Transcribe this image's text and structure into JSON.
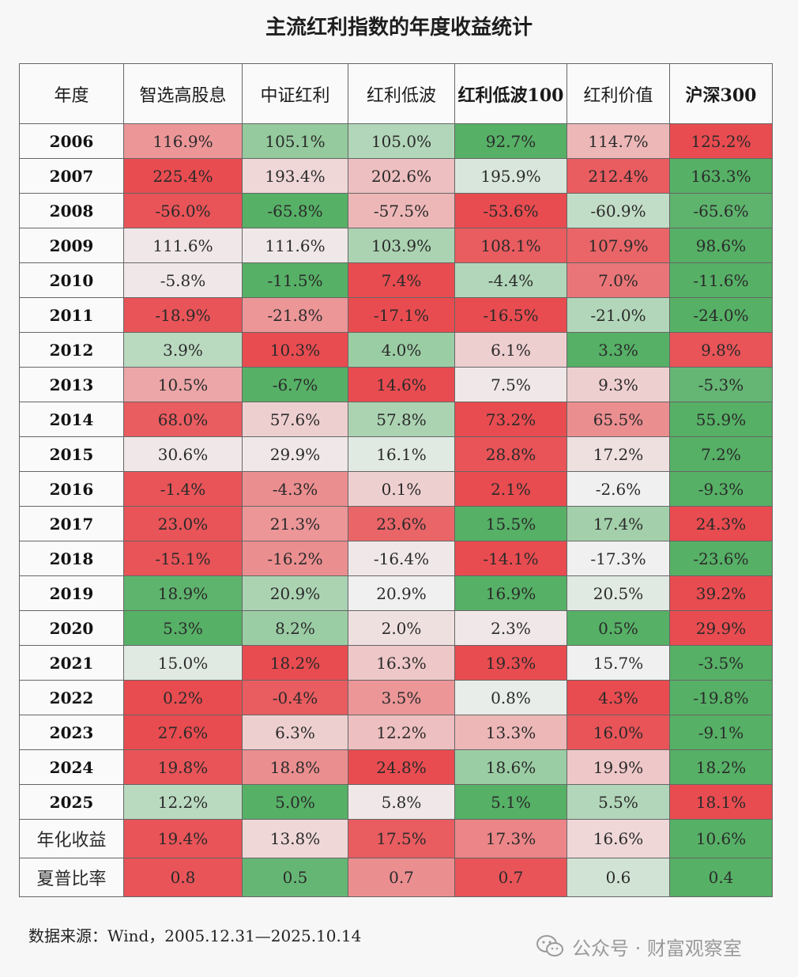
{
  "title": "主流红利指数的年度收益统计",
  "source": "数据来源：Wind，2005.12.31—2025.10.14",
  "watermark": {
    "text": "公众号 · 财富观察室",
    "icon": "wechat-icon"
  },
  "colors": {
    "red": "#e84c50",
    "green": "#56b066",
    "neutral": "#f0f0f0",
    "border": "#666666"
  },
  "headers": [
    "年度",
    "智选高股息",
    "中证红利",
    "红利低波",
    "红利低波100",
    "红利价值",
    "沪深300"
  ],
  "rows": [
    {
      "year": "2006",
      "values": [
        "116.9%",
        "105.1%",
        "105.0%",
        "92.7%",
        "114.7%",
        "125.2%"
      ],
      "shade": [
        0.55,
        -0.6,
        -0.4,
        -1.0,
        0.35,
        1.0
      ]
    },
    {
      "year": "2007",
      "values": [
        "225.4%",
        "193.4%",
        "202.6%",
        "195.9%",
        "212.4%",
        "163.3%"
      ],
      "shade": [
        1.0,
        0.15,
        0.3,
        -0.15,
        0.9,
        -1.0
      ]
    },
    {
      "year": "2008",
      "values": [
        "-56.0%",
        "-65.8%",
        "-57.5%",
        "-53.6%",
        "-60.9%",
        "-65.6%"
      ],
      "shade": [
        0.95,
        -1.0,
        0.35,
        1.0,
        -0.3,
        -0.95
      ]
    },
    {
      "year": "2009",
      "values": [
        "111.6%",
        "111.6%",
        "103.9%",
        "108.1%",
        "107.9%",
        "98.6%"
      ],
      "shade": [
        0.05,
        0.05,
        -0.45,
        0.9,
        0.85,
        -1.0
      ]
    },
    {
      "year": "2010",
      "values": [
        "-5.8%",
        "-11.5%",
        "7.4%",
        "-4.4%",
        "7.0%",
        "-11.6%"
      ],
      "shade": [
        0.05,
        -1.0,
        1.0,
        -0.4,
        0.75,
        -1.0
      ]
    },
    {
      "year": "2011",
      "values": [
        "-18.9%",
        "-21.8%",
        "-17.1%",
        "-16.5%",
        "-21.0%",
        "-24.0%"
      ],
      "shade": [
        0.95,
        0.55,
        1.0,
        1.0,
        -0.4,
        -1.0
      ]
    },
    {
      "year": "2012",
      "values": [
        "3.9%",
        "10.3%",
        "4.0%",
        "6.1%",
        "3.3%",
        "9.8%"
      ],
      "shade": [
        -0.35,
        1.0,
        -0.55,
        0.2,
        -1.0,
        0.95
      ]
    },
    {
      "year": "2013",
      "values": [
        "10.5%",
        "-6.7%",
        "14.6%",
        "7.5%",
        "9.3%",
        "-5.3%"
      ],
      "shade": [
        0.45,
        -1.0,
        1.0,
        0.05,
        0.2,
        -0.9
      ]
    },
    {
      "year": "2014",
      "values": [
        "68.0%",
        "57.6%",
        "57.8%",
        "73.2%",
        "65.5%",
        "55.9%"
      ],
      "shade": [
        0.9,
        0.2,
        -0.45,
        1.0,
        0.6,
        -1.0
      ]
    },
    {
      "year": "2015",
      "values": [
        "30.6%",
        "29.9%",
        "16.1%",
        "28.8%",
        "17.2%",
        "7.2%"
      ],
      "shade": [
        0.05,
        0.05,
        -0.1,
        0.95,
        0.1,
        -1.0
      ]
    },
    {
      "year": "2016",
      "values": [
        "-1.4%",
        "-4.3%",
        "0.1%",
        "2.1%",
        "-2.6%",
        "-9.3%"
      ],
      "shade": [
        0.95,
        0.6,
        0.2,
        1.0,
        0.0,
        -1.0
      ]
    },
    {
      "year": "2017",
      "values": [
        "23.0%",
        "21.3%",
        "23.6%",
        "15.5%",
        "17.4%",
        "24.3%"
      ],
      "shade": [
        0.95,
        0.55,
        0.85,
        -1.0,
        -0.5,
        1.0
      ]
    },
    {
      "year": "2018",
      "values": [
        "-15.1%",
        "-16.2%",
        "-16.4%",
        "-14.1%",
        "-17.3%",
        "-23.6%"
      ],
      "shade": [
        0.95,
        0.6,
        0.05,
        1.0,
        0.0,
        -1.0
      ]
    },
    {
      "year": "2019",
      "values": [
        "18.9%",
        "20.9%",
        "20.9%",
        "16.9%",
        "20.5%",
        "39.2%"
      ],
      "shade": [
        -0.95,
        -0.45,
        0.0,
        -1.0,
        -0.1,
        1.0
      ]
    },
    {
      "year": "2020",
      "values": [
        "5.3%",
        "8.2%",
        "2.0%",
        "2.3%",
        "0.5%",
        "29.9%"
      ],
      "shade": [
        -1.0,
        -0.55,
        0.1,
        0.05,
        -1.0,
        1.0
      ]
    },
    {
      "year": "2021",
      "values": [
        "15.0%",
        "18.2%",
        "16.3%",
        "19.3%",
        "15.7%",
        "-3.5%"
      ],
      "shade": [
        -0.1,
        1.0,
        0.25,
        1.0,
        0.0,
        -1.0
      ]
    },
    {
      "year": "2022",
      "values": [
        "0.2%",
        "-0.4%",
        "3.5%",
        "0.8%",
        "4.3%",
        "-19.8%"
      ],
      "shade": [
        1.0,
        0.9,
        0.55,
        -0.05,
        1.0,
        -1.0
      ]
    },
    {
      "year": "2023",
      "values": [
        "27.6%",
        "6.3%",
        "12.2%",
        "13.3%",
        "16.0%",
        "-9.1%"
      ],
      "shade": [
        1.0,
        0.2,
        0.3,
        0.35,
        0.95,
        -1.0
      ]
    },
    {
      "year": "2024",
      "values": [
        "19.8%",
        "18.8%",
        "24.8%",
        "18.6%",
        "19.9%",
        "18.2%"
      ],
      "shade": [
        0.95,
        0.6,
        1.0,
        -0.55,
        0.25,
        -1.0
      ]
    },
    {
      "year": "2025",
      "values": [
        "12.2%",
        "5.0%",
        "5.8%",
        "5.1%",
        "5.5%",
        "18.1%"
      ],
      "shade": [
        -0.35,
        -1.0,
        0.05,
        -1.0,
        -0.4,
        1.0
      ]
    },
    {
      "year": "年化收益",
      "values": [
        "19.4%",
        "13.8%",
        "17.5%",
        "17.3%",
        "16.6%",
        "10.6%"
      ],
      "shade": [
        0.95,
        0.15,
        0.9,
        0.65,
        0.15,
        -1.0
      ],
      "label": true
    },
    {
      "year": "夏普比率",
      "values": [
        "0.8",
        "0.5",
        "0.7",
        "0.7",
        "0.6",
        "0.4"
      ],
      "shade": [
        0.95,
        -0.9,
        0.6,
        0.95,
        -0.2,
        -1.0
      ],
      "label": true
    }
  ]
}
